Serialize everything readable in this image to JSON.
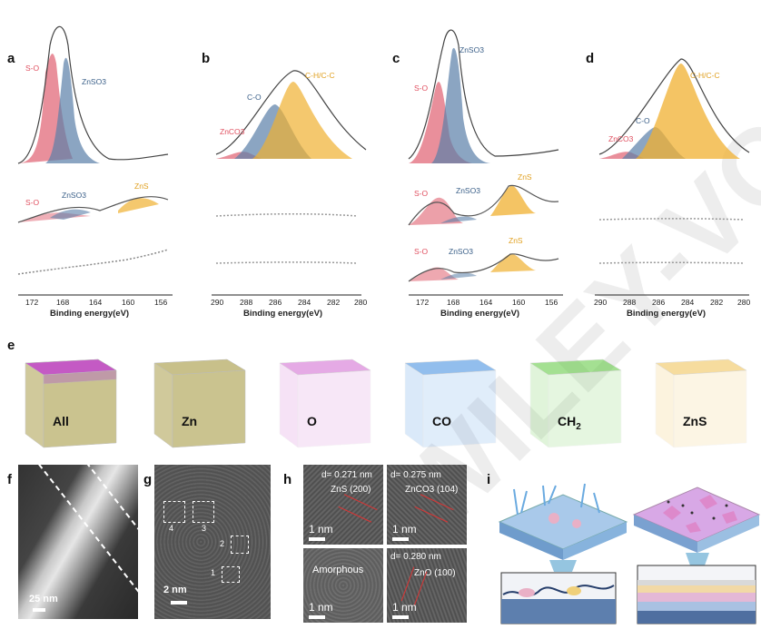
{
  "panels": {
    "a": "a",
    "b": "b",
    "c": "c",
    "d": "d",
    "e": "e",
    "f": "f",
    "g": "g",
    "h": "h",
    "i": "i"
  },
  "xps": {
    "xlabel": "Binding energy(eV)",
    "s_ticks": [
      "172",
      "168",
      "164",
      "160",
      "156"
    ],
    "c_ticks": [
      "290",
      "288",
      "286",
      "284",
      "282",
      "280"
    ],
    "a_labels": {
      "so_top": "S-O",
      "znso3_top": "ZnSO3",
      "so_mid": "S-O",
      "znso3_mid": "ZnSO3",
      "zns_mid": "ZnS"
    },
    "b_labels": {
      "znco3": "ZnCO3",
      "co": "C-O",
      "chc": "C-H/C-C"
    },
    "c_labels": {
      "so_top": "S-O",
      "znso3_top": "ZnSO3",
      "so_mid": "S-O",
      "znso3_mid": "ZnSO3",
      "zns_mid": "ZnS",
      "so_bot": "S-O",
      "znso3_bot": "ZnSO3",
      "zns_bot": "ZnS"
    },
    "d_labels": {
      "znco3": "ZnCO3",
      "co": "C-O",
      "chc": "C-H/C-C"
    }
  },
  "tof": {
    "cubes": [
      {
        "label": "All",
        "color": "#c8c08a"
      },
      {
        "label": "Zn",
        "color": "#c8c08a"
      },
      {
        "label": "O",
        "color": "#d066d0"
      },
      {
        "label": "CO",
        "color": "#3a8ae0"
      },
      {
        "label": "CH2",
        "color": "#5ac83a"
      },
      {
        "label": "ZnS",
        "color": "#f0c050"
      }
    ]
  },
  "tem": {
    "f_scale": "25 nm",
    "g_scale": "2 nm",
    "g_boxes": [
      "4",
      "3",
      "2",
      "1"
    ],
    "h1_d": "d= 0.271 nm",
    "h1_phase": "ZnS (200)",
    "h2_d": "d= 0.275 nm",
    "h2_phase": "ZnCO3 (104)",
    "h3_label": "Amorphous",
    "h4_d": "d= 0.280 nm",
    "h4_phase": "ZnO (100)",
    "h_scale": "1 nm"
  },
  "colors": {
    "red": "#e05060",
    "blue": "#5a7fa8",
    "yellow": "#f0b030"
  }
}
